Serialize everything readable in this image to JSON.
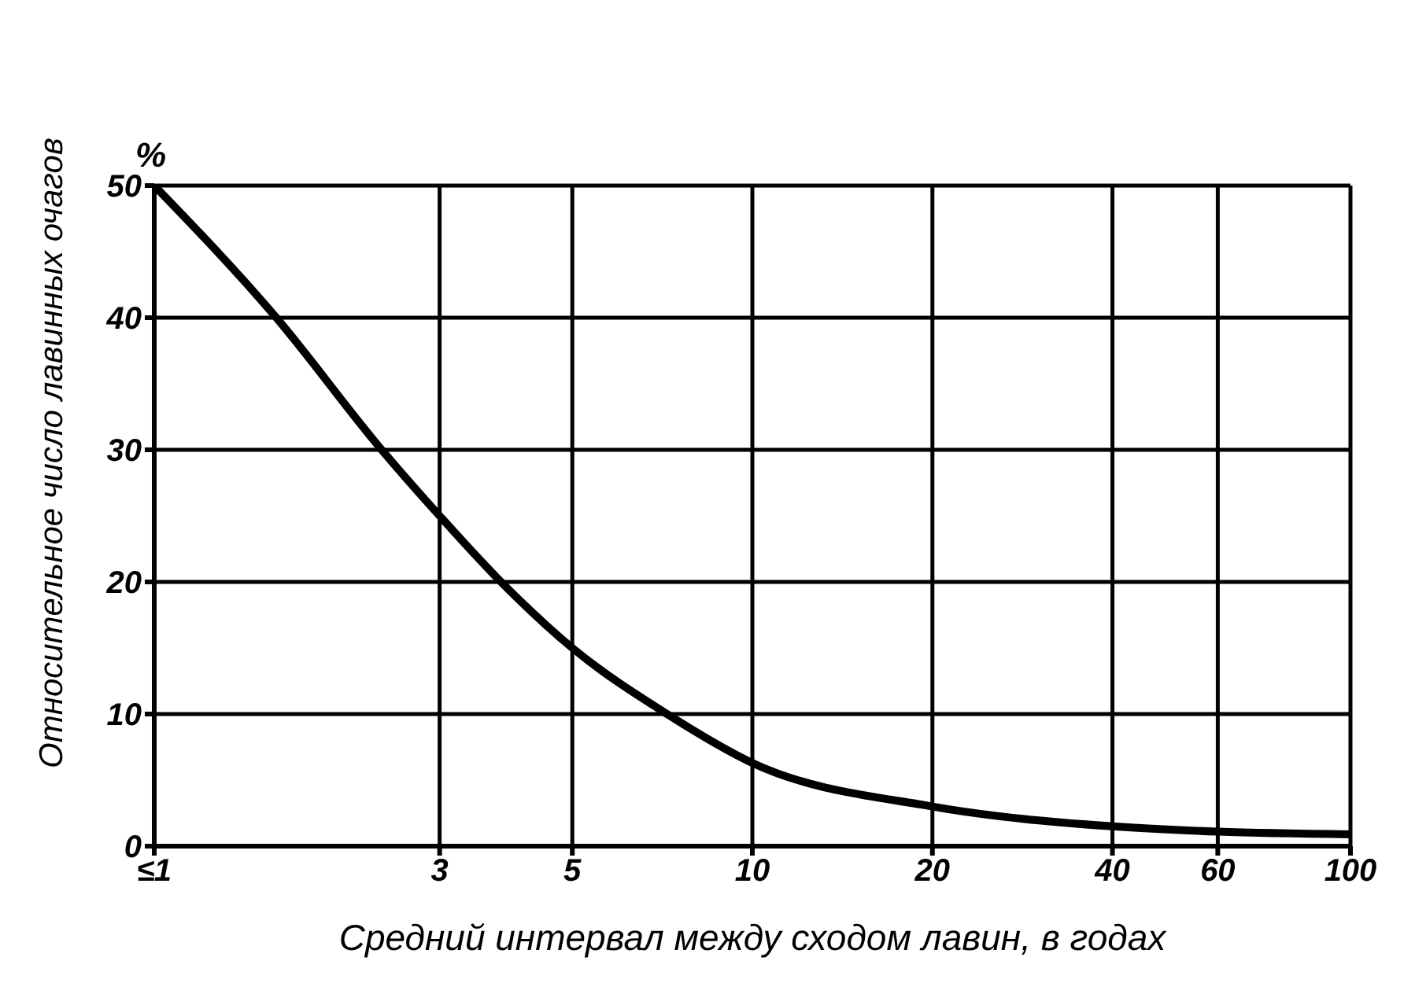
{
  "chart_data": {
    "type": "line",
    "xlabel": "Средний интервал между сходом лавин, в годах",
    "ylabel": "Относительное число лавинных очагов",
    "annotations": [
      "%"
    ],
    "x": [
      1,
      1.6,
      2.4,
      3,
      3.8,
      5,
      7.2,
      10,
      20,
      40,
      60,
      100
    ],
    "series": [
      {
        "color": "#000000",
        "values": [
          50,
          40,
          30,
          25,
          20,
          15,
          10,
          6.3,
          3,
          1.5,
          1.1,
          0.9
        ]
      }
    ],
    "log": "x",
    "xlim": [
      1,
      100
    ],
    "xticks": [
      {
        "value": 1,
        "label": "≤1"
      },
      3,
      5,
      10,
      20,
      40,
      60,
      100
    ],
    "ylim": [
      0,
      50
    ],
    "yticks": [
      0,
      10,
      20,
      30,
      40,
      50
    ],
    "grid": true,
    "marker": "none",
    "line_style": "solid",
    "legend": false
  }
}
